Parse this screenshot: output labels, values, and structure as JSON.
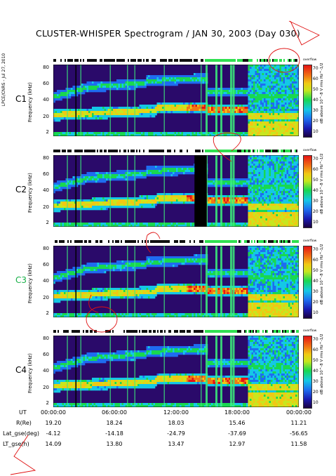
{
  "title": "CLUSTER-WHISPER Spectrogram / JAN 30, 2003 (Day 030)",
  "credit": "LPCE/CNRS - Jul 27, 2010",
  "chart_data": {
    "type": "heatmap",
    "title": "CLUSTER-WHISPER Spectrogram / JAN 30, 2003 (Day 030)",
    "xlabel": "UT",
    "ylabel": "Frequency (kHz)",
    "ylim": [
      2,
      80
    ],
    "yticks": [
      "80",
      "60",
      "40",
      "20",
      "2"
    ],
    "colorbar": {
      "ticks": [
        "70",
        "60",
        "50",
        "40",
        "30",
        "20",
        "10"
      ],
      "label": "dB above 10^-8 V rms Hz^-1/2",
      "word": "overflow",
      "range": [
        10,
        70
      ],
      "colors": [
        "#1a0040",
        "#1a1ab0",
        "#1e6cf0",
        "#14c8e6",
        "#18d850",
        "#c8e61e",
        "#f0c814",
        "#f07814",
        "#e61414"
      ]
    },
    "panels": [
      {
        "name": "C1",
        "label_color": "#000000"
      },
      {
        "name": "C2",
        "label_color": "#000000"
      },
      {
        "name": "C3",
        "label_color": "#18b048"
      },
      {
        "name": "C4",
        "label_color": "#000000"
      }
    ],
    "x_ticks": [
      "00:00:00",
      "06:00:00",
      "12:00:00",
      "18:00:00",
      "00:00:00"
    ],
    "x_hours": [
      0,
      6,
      12,
      18,
      24
    ],
    "bands_approx_khz": {
      "lower_band": [
        [
          0,
          25
        ],
        [
          6,
          28
        ],
        [
          10,
          30
        ],
        [
          12,
          33
        ],
        [
          16,
          30
        ],
        [
          19,
          25
        ]
      ],
      "upper_band": [
        [
          0,
          45
        ],
        [
          3,
          55
        ],
        [
          9,
          60
        ],
        [
          12,
          65
        ],
        [
          16,
          50
        ],
        [
          20,
          45
        ]
      ]
    },
    "orbit_table": {
      "rows": [
        {
          "label": "R(Re)",
          "values": [
            "19.20",
            "18.24",
            "18.03",
            "15.46",
            "11.21"
          ]
        },
        {
          "label": "Lat_gse(deg)",
          "values": [
            "-4.12",
            "-14.18",
            "-24.79",
            "-37.69",
            "-56.65"
          ]
        },
        {
          "label": "LT_gse(h)",
          "values": [
            "14.09",
            "13.80",
            "13.47",
            "12.97",
            "11.58"
          ]
        }
      ]
    }
  },
  "ui": {
    "ut_label": "UT",
    "panel_label": "Frequency (kHz)"
  }
}
